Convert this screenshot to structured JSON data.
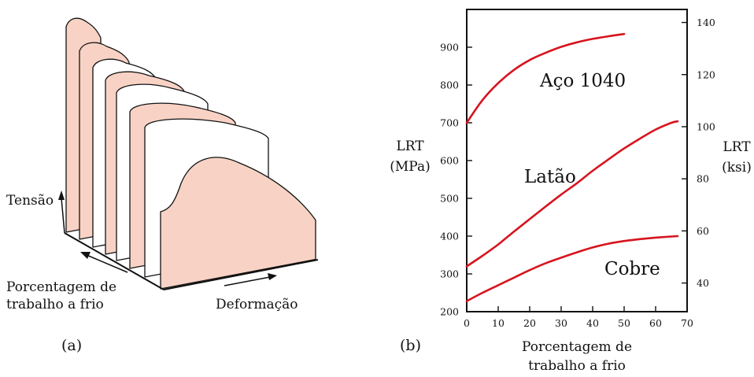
{
  "colors": {
    "curve": "#d7141e",
    "sheet": "#f8d3c5",
    "outline": "#111111"
  },
  "schematic": {
    "panel_label": "(a)",
    "stress_label": "Tensão",
    "strain_label": "Deformação",
    "cold_work_label_line1": "Porcentagem de",
    "cold_work_label_line2": "trabalho a frio"
  },
  "chart_data": {
    "type": "line",
    "panel_label": "(b)",
    "xlabel_line1": "Porcentagem de",
    "xlabel_line2": "trabalho a frio",
    "ylabel_left_line1": "LRT",
    "ylabel_left_line2": "(MPa)",
    "ylabel_right_line1": "LRT",
    "ylabel_right_line2": "(ksi)",
    "xlim": [
      0,
      70
    ],
    "ylim_left": [
      200,
      1000
    ],
    "ylim_right_ksi": [
      29,
      145
    ],
    "x_ticks": [
      0,
      10,
      20,
      30,
      40,
      50,
      60,
      70
    ],
    "y_ticks_left": [
      200,
      300,
      400,
      500,
      600,
      700,
      800,
      900
    ],
    "y_ticks_right": [
      40,
      60,
      80,
      100,
      120,
      140
    ],
    "series": [
      {
        "name": "Aço 1040",
        "x": [
          0,
          5,
          10,
          15,
          20,
          25,
          30,
          35,
          40,
          45,
          50
        ],
        "y": [
          700,
          760,
          805,
          840,
          866,
          885,
          901,
          913,
          922,
          929,
          935
        ]
      },
      {
        "name": "Latão",
        "x": [
          0,
          5,
          10,
          15,
          20,
          25,
          30,
          35,
          40,
          45,
          50,
          55,
          60,
          65,
          67
        ],
        "y": [
          320,
          348,
          378,
          412,
          445,
          478,
          510,
          540,
          573,
          603,
          632,
          658,
          682,
          700,
          704
        ]
      },
      {
        "name": "Cobre",
        "x": [
          0,
          5,
          10,
          15,
          20,
          25,
          30,
          35,
          40,
          45,
          50,
          55,
          60,
          65,
          67
        ],
        "y": [
          228,
          250,
          270,
          290,
          310,
          328,
          343,
          357,
          370,
          380,
          387,
          392,
          396,
          399,
          400
        ]
      }
    ]
  }
}
